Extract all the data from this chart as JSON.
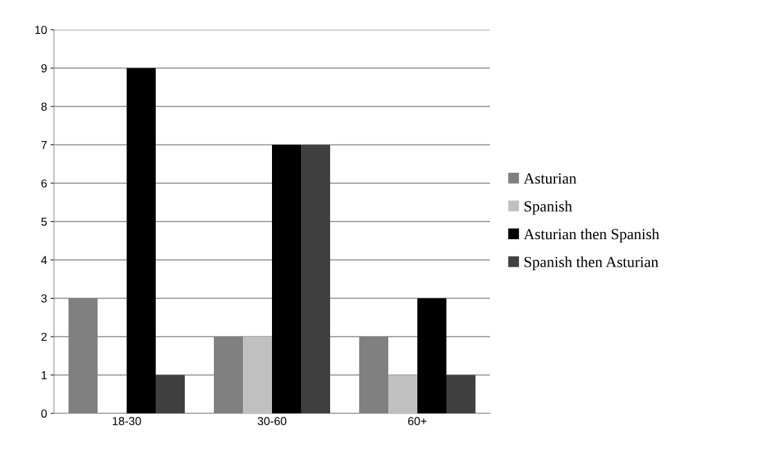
{
  "chart_data": {
    "type": "bar",
    "categories": [
      "18-30",
      "30-60",
      "60+"
    ],
    "series": [
      {
        "name": "Asturian",
        "color": "#808080",
        "values": [
          3,
          2,
          2
        ]
      },
      {
        "name": "Spanish",
        "color": "#c0c0c0",
        "values": [
          0,
          2,
          1
        ]
      },
      {
        "name": "Asturian then Spanish",
        "color": "#000000",
        "values": [
          9,
          7,
          3
        ]
      },
      {
        "name": "Spanish then Asturian",
        "color": "#404040",
        "values": [
          1,
          7,
          1
        ]
      }
    ],
    "ylim": [
      0,
      10
    ],
    "yticks": [
      0,
      1,
      2,
      3,
      4,
      5,
      6,
      7,
      8,
      9,
      10
    ],
    "grid": "y",
    "legend": "right"
  }
}
